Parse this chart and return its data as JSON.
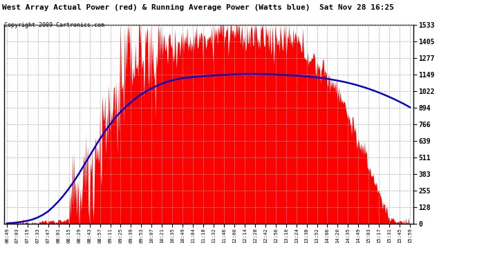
{
  "title": "West Array Actual Power (red) & Running Average Power (Watts blue)  Sat Nov 28 16:25",
  "copyright": "Copyright 2009 Cartronics.com",
  "bg_color": "#ffffff",
  "outer_bg": "#ffffff",
  "red_color": "#ff0000",
  "blue_color": "#0000cc",
  "ymin": 0.0,
  "ymax": 1532.6,
  "yticks": [
    0.0,
    127.7,
    255.4,
    383.1,
    510.9,
    638.6,
    766.3,
    894.0,
    1021.7,
    1149.4,
    1277.1,
    1404.8,
    1532.6
  ],
  "xtick_labels": [
    "06:49",
    "07:03",
    "07:19",
    "07:33",
    "07:47",
    "08:01",
    "08:15",
    "08:29",
    "08:43",
    "08:57",
    "09:11",
    "09:25",
    "09:39",
    "09:53",
    "10:07",
    "10:21",
    "10:35",
    "10:49",
    "11:04",
    "11:18",
    "11:32",
    "11:46",
    "12:00",
    "12:14",
    "12:28",
    "12:42",
    "12:56",
    "13:10",
    "13:24",
    "13:38",
    "13:52",
    "14:06",
    "14:20",
    "14:35",
    "14:49",
    "15:03",
    "15:17",
    "15:31",
    "15:45",
    "15:59"
  ],
  "blue_y": [
    5,
    8,
    12,
    18,
    25,
    35,
    50,
    70,
    95,
    130,
    170,
    215,
    265,
    320,
    380,
    445,
    510,
    575,
    640,
    700,
    755,
    805,
    850,
    890,
    925,
    958,
    988,
    1013,
    1035,
    1055,
    1073,
    1088,
    1100,
    1110,
    1118,
    1124,
    1128,
    1132,
    1135,
    1138,
    1140,
    1143,
    1145,
    1147,
    1149,
    1151,
    1152,
    1153,
    1153,
    1153,
    1152,
    1151,
    1150,
    1148,
    1146,
    1144,
    1142,
    1140,
    1137,
    1134,
    1130,
    1126,
    1121,
    1115,
    1108,
    1101,
    1093,
    1084,
    1074,
    1063,
    1051,
    1038,
    1024,
    1009,
    993,
    976,
    958,
    939,
    919,
    897
  ]
}
